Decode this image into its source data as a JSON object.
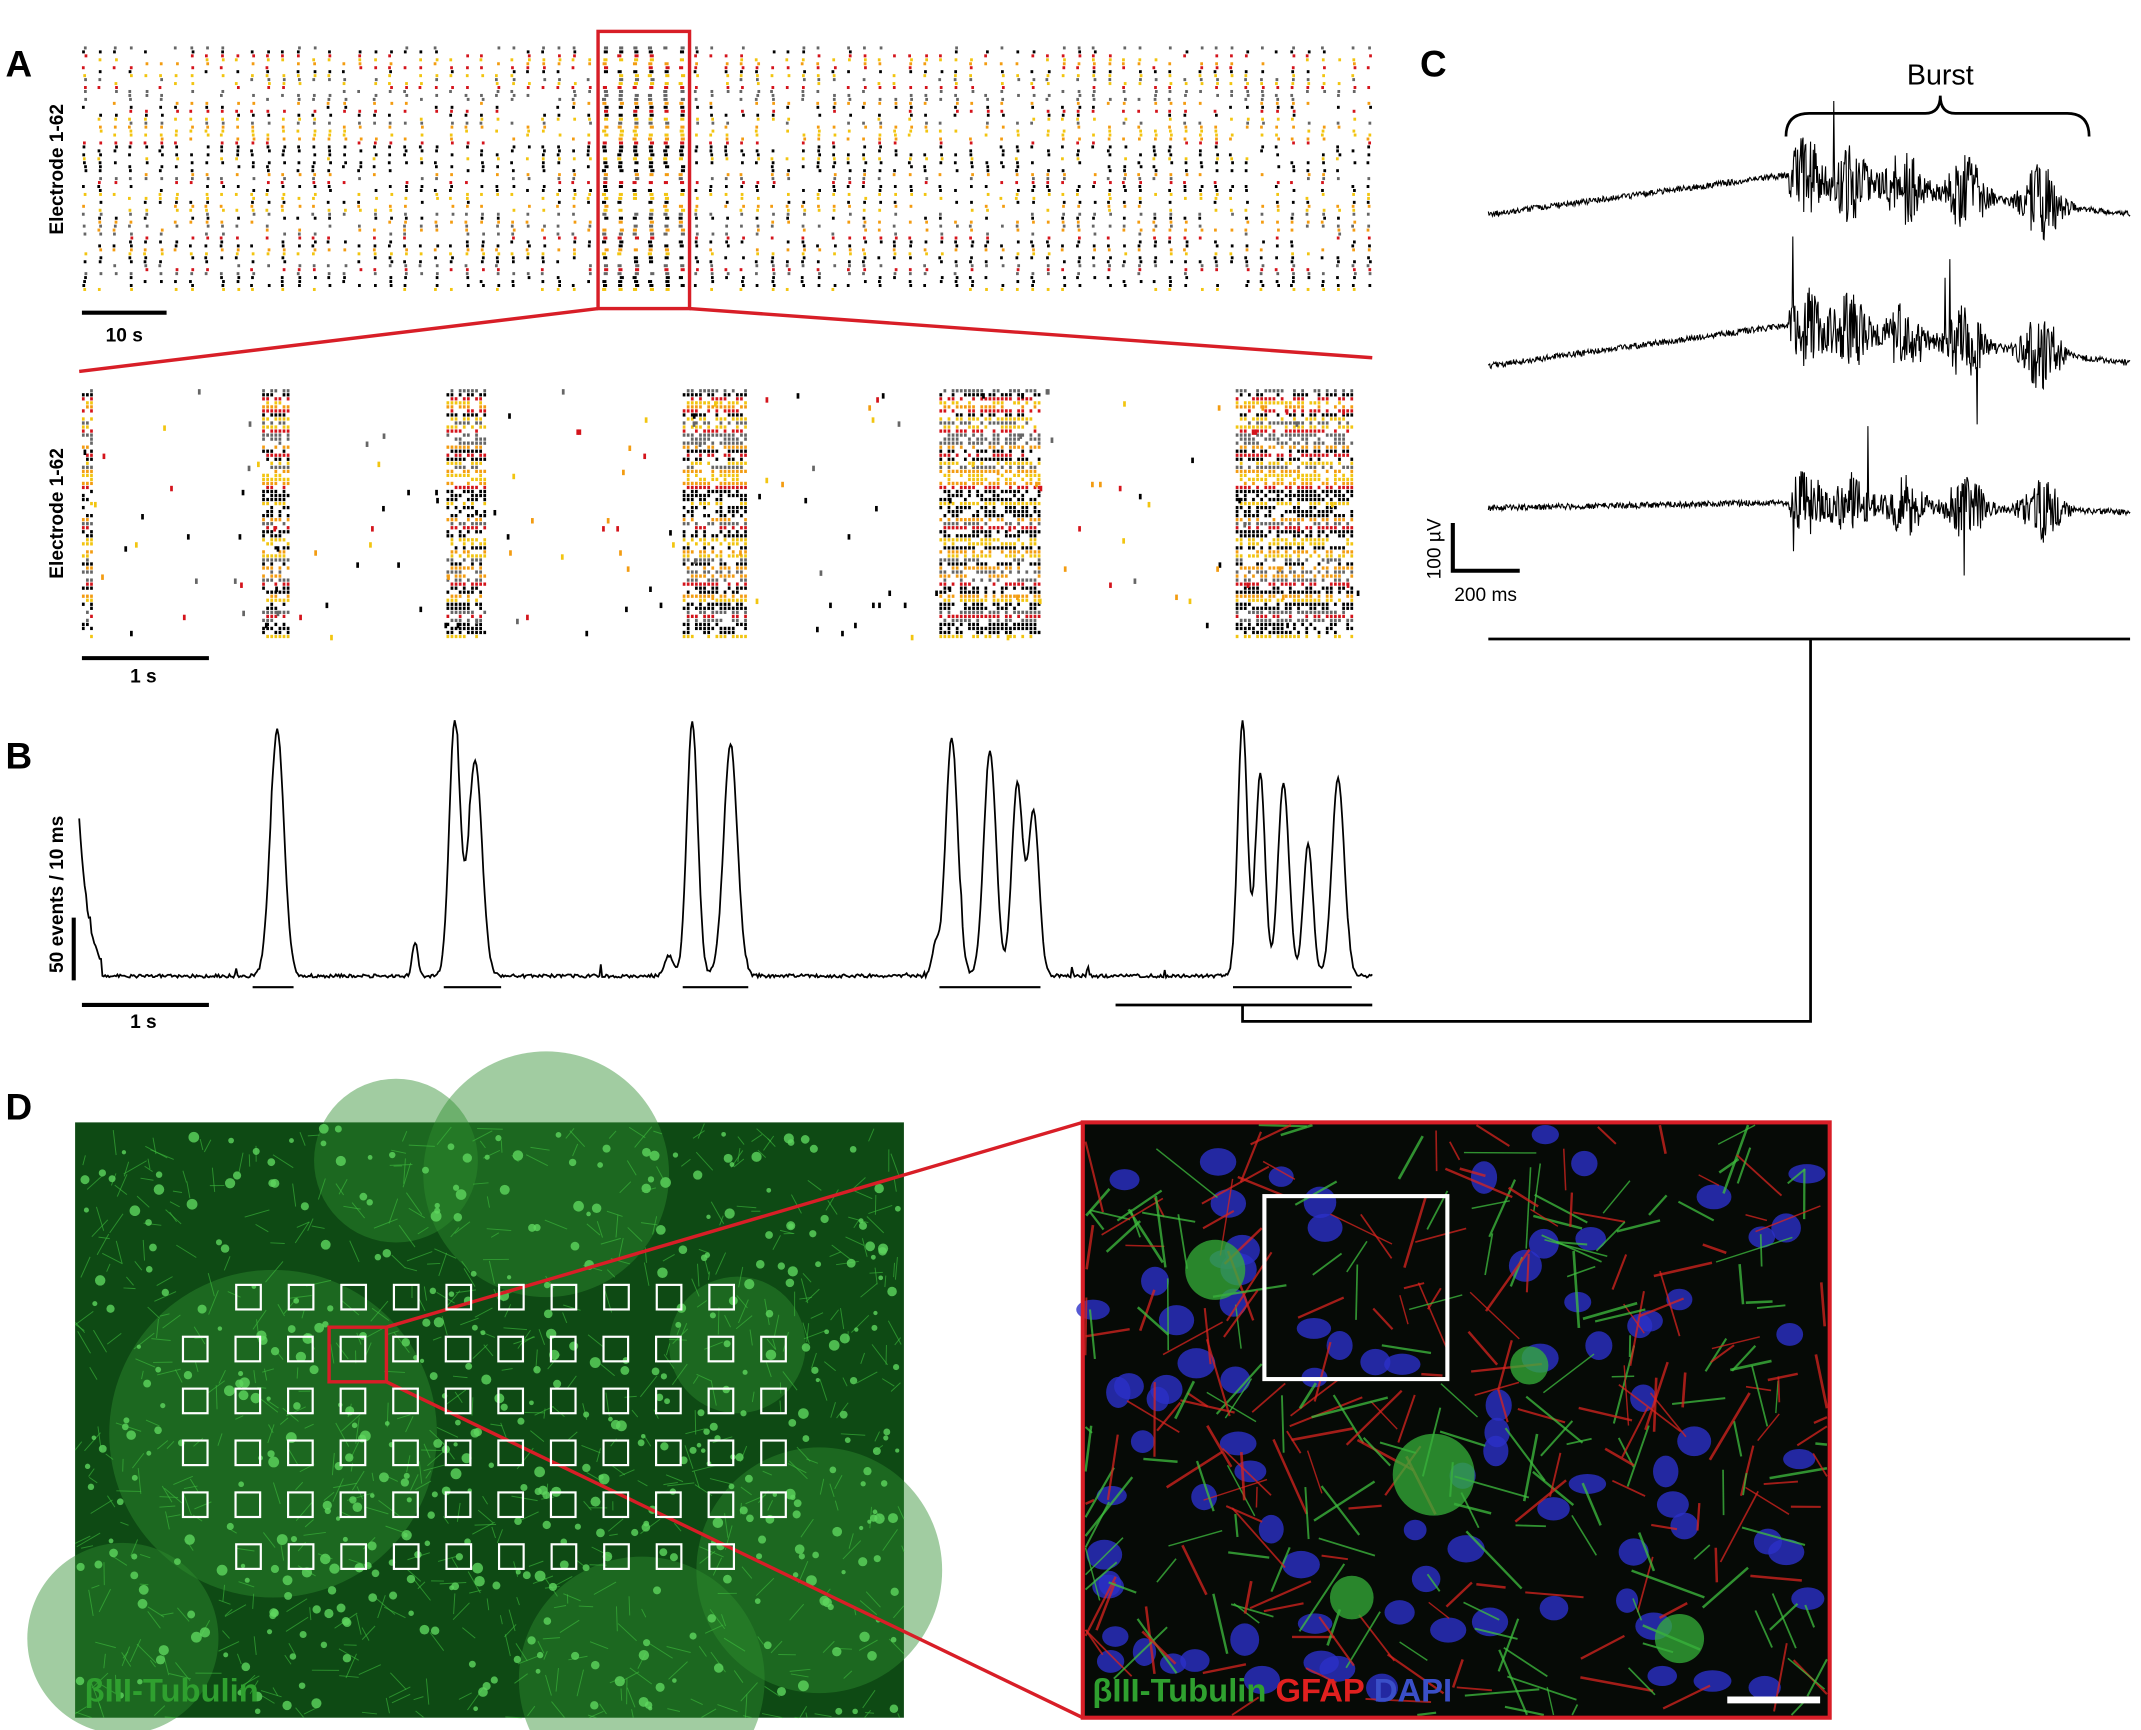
{
  "panels": {
    "A": {
      "label": "A",
      "y_label": "Electrode 1-62",
      "scale_bar": "10 s",
      "zoom_y_label": "Electrode 1-62",
      "zoom_scale_bar": "1 s"
    },
    "B": {
      "label": "B",
      "y_scale_bar": "50 events / 10 ms",
      "x_scale_bar": "1 s"
    },
    "C": {
      "label": "C",
      "annotation": "Burst",
      "y_scale_bar": "100 µV",
      "x_scale_bar": "200 ms"
    },
    "D": {
      "label": "D",
      "left_stain": "βIII-Tubulin",
      "right_stains": [
        "βIII-Tubulin",
        "GFAP",
        "DAPI"
      ]
    }
  }
}
